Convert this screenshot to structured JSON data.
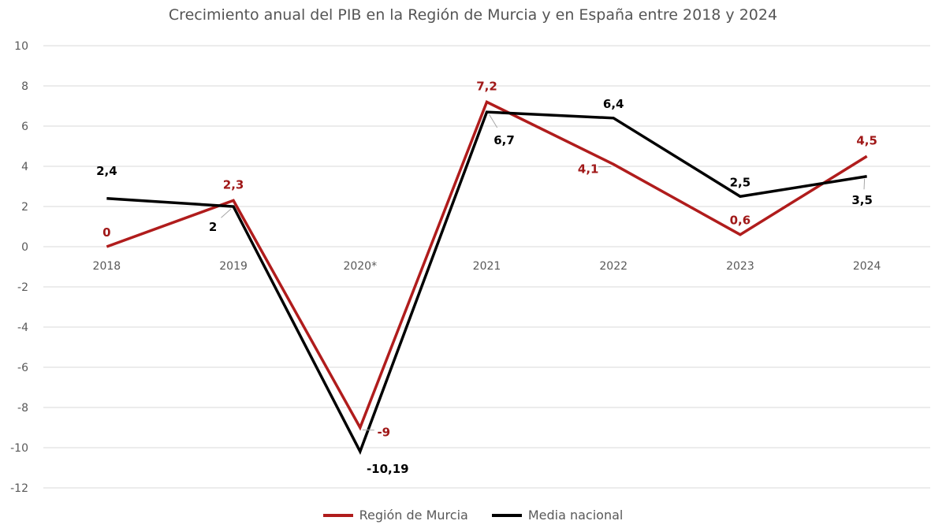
{
  "chart_data": {
    "type": "line",
    "title": "Crecimiento anual del PIB en la Región de Murcia y en España entre 2018 y 2024",
    "categories": [
      "2018",
      "2019",
      "2020*",
      "2021",
      "2022",
      "2023",
      "2024"
    ],
    "series": [
      {
        "name": "Región de Murcia",
        "color": "#b01c1c",
        "values": [
          0,
          2.3,
          -9,
          7.2,
          4.1,
          0.6,
          4.5
        ],
        "labels": [
          "0",
          "2,3",
          "-9",
          "7,2",
          "4,1",
          "0,6",
          "4,5"
        ]
      },
      {
        "name": "Media nacional",
        "color": "#000000",
        "values": [
          2.4,
          2,
          -10.19,
          6.7,
          6.4,
          2.5,
          3.5
        ],
        "labels": [
          "2,4",
          "2",
          "-10,19",
          "6,7",
          "6,4",
          "2,5",
          "3,5"
        ]
      }
    ],
    "ylim": [
      -12,
      10
    ],
    "yticks": [
      10,
      8,
      6,
      4,
      2,
      0,
      -2,
      -4,
      -6,
      -8,
      -10,
      -12
    ],
    "grid": true,
    "legend": "bottom"
  }
}
